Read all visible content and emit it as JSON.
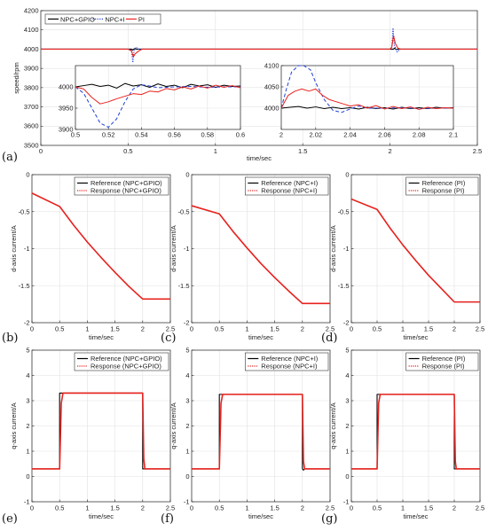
{
  "panel_labels": [
    "(a)",
    "(b)",
    "(c)",
    "(d)",
    "(e)",
    "(f)",
    "(g)"
  ],
  "colors": {
    "black": "#000000",
    "blue": "#1f3fd6",
    "red": "#e8231f"
  },
  "chart_data": [
    {
      "id": "a",
      "type": "line",
      "xlabel": "time/sec",
      "ylabel": "speed/rpm",
      "xlim": [
        0,
        2.5
      ],
      "ylim": [
        3500,
        4200
      ],
      "xticks": [
        0,
        0.5,
        1,
        1.5,
        2,
        2.5
      ],
      "yticks": [
        3500,
        3600,
        3700,
        3800,
        3900,
        4000,
        4100,
        4200
      ],
      "grid": true,
      "legend_position": "top-left",
      "series": [
        {
          "name": "NPC+GPIO",
          "color": "#000000",
          "dash": "solid",
          "x": [
            0,
            0.5,
            0.52,
            0.525,
            0.53,
            0.535,
            0.55,
            2.0,
            2.02,
            2.025,
            2.03,
            2.035,
            2.05,
            2.5
          ],
          "y": [
            4000,
            4000,
            4000,
            3995,
            3998,
            4002,
            4000,
            4000,
            4000,
            4005,
            4002,
            3998,
            4000,
            4000
          ]
        },
        {
          "name": "NPC+I",
          "color": "#1f3fd6",
          "dash": "dotted",
          "x": [
            0,
            0.51,
            0.52,
            0.527,
            0.535,
            0.545,
            0.56,
            2.0,
            2.01,
            2.017,
            2.025,
            2.04,
            2.06,
            2.5
          ],
          "y": [
            4000,
            4000,
            3990,
            3930,
            4000,
            4010,
            4000,
            4000,
            4010,
            4110,
            4020,
            3985,
            4000,
            4000
          ]
        },
        {
          "name": "PI",
          "color": "#e8231f",
          "dash": "solid",
          "x": [
            0,
            0.5,
            0.52,
            0.53,
            0.54,
            0.56,
            0.58,
            2.0,
            2.01,
            2.02,
            2.03,
            2.045,
            2.06,
            2.5
          ],
          "y": [
            4000,
            4000,
            3990,
            3960,
            3975,
            3990,
            4000,
            4000,
            4010,
            4070,
            4030,
            4005,
            4000,
            4000
          ]
        }
      ],
      "insets": [
        {
          "xlim": [
            0.5,
            0.6
          ],
          "ylim": [
            3900,
            4050
          ],
          "xticks": [
            0.5,
            0.52,
            0.54,
            0.56,
            0.58,
            0.6
          ],
          "yticks": [
            3900,
            3950,
            4000
          ],
          "series": [
            {
              "color": "#000000",
              "dash": "solid",
              "x": [
                0.5,
                0.505,
                0.51,
                0.515,
                0.52,
                0.525,
                0.53,
                0.535,
                0.54,
                0.545,
                0.55,
                0.555,
                0.56,
                0.565,
                0.57,
                0.575,
                0.58,
                0.585,
                0.59,
                0.595,
                0.6
              ],
              "y": [
                4000,
                4003,
                4006,
                4001,
                4004,
                3997,
                4008,
                4002,
                4005,
                3999,
                4007,
                4001,
                4004,
                3998,
                4006,
                4002,
                4005,
                3999,
                4004,
                4001,
                4002
              ]
            },
            {
              "color": "#1f3fd6",
              "dash": "dashed",
              "x": [
                0.5,
                0.505,
                0.51,
                0.515,
                0.52,
                0.525,
                0.53,
                0.535,
                0.54,
                0.545,
                0.55,
                0.56,
                0.57,
                0.58,
                0.59,
                0.6
              ],
              "y": [
                4000,
                3985,
                3950,
                3915,
                3905,
                3925,
                3965,
                3995,
                4005,
                4002,
                3998,
                4000,
                4001,
                3999,
                4000,
                4000
              ]
            },
            {
              "color": "#e8231f",
              "dash": "solid",
              "x": [
                0.5,
                0.505,
                0.51,
                0.515,
                0.52,
                0.525,
                0.53,
                0.535,
                0.54,
                0.545,
                0.55,
                0.555,
                0.56,
                0.565,
                0.57,
                0.575,
                0.58,
                0.585,
                0.59,
                0.595,
                0.6
              ],
              "y": [
                4000,
                3995,
                3975,
                3960,
                3965,
                3972,
                3978,
                3984,
                3982,
                3990,
                3988,
                3996,
                3993,
                4000,
                3995,
                4002,
                3997,
                4004,
                3999,
                4003,
                3998
              ]
            }
          ]
        },
        {
          "xlim": [
            2,
            2.1
          ],
          "ylim": [
            3950,
            4100
          ],
          "xticks": [
            2,
            2.02,
            2.04,
            2.06,
            2.08,
            2.1
          ],
          "yticks": [
            4000,
            4050,
            4100
          ],
          "series": [
            {
              "color": "#000000",
              "dash": "solid",
              "x": [
                2,
                2.005,
                2.01,
                2.015,
                2.02,
                2.025,
                2.03,
                2.035,
                2.04,
                2.045,
                2.05,
                2.055,
                2.06,
                2.065,
                2.07,
                2.075,
                2.08,
                2.085,
                2.09,
                2.095,
                2.1
              ],
              "y": [
                4000,
                4002,
                4004,
                4000,
                4003,
                3999,
                4002,
                3999,
                4001,
                3998,
                4002,
                3999,
                4001,
                3998,
                4002,
                3999,
                4001,
                3999,
                4002,
                4000,
                4001
              ]
            },
            {
              "color": "#1f3fd6",
              "dash": "dashed",
              "x": [
                2,
                2.003,
                2.006,
                2.01,
                2.013,
                2.017,
                2.02,
                2.025,
                2.03,
                2.035,
                2.04,
                2.045,
                2.05,
                2.06,
                2.07,
                2.08,
                2.09,
                2.1
              ],
              "y": [
                4000,
                4045,
                4085,
                4100,
                4100,
                4090,
                4060,
                4020,
                3995,
                3990,
                3998,
                4005,
                4000,
                4000,
                4001,
                3999,
                4000,
                4000
              ]
            },
            {
              "color": "#e8231f",
              "dash": "solid",
              "x": [
                2,
                2.004,
                2.008,
                2.012,
                2.016,
                2.02,
                2.024,
                2.028,
                2.032,
                2.036,
                2.04,
                2.045,
                2.05,
                2.055,
                2.06,
                2.065,
                2.07,
                2.075,
                2.08,
                2.085,
                2.09,
                2.095,
                2.1
              ],
              "y": [
                4000,
                4030,
                4040,
                4045,
                4040,
                4045,
                4030,
                4020,
                4015,
                4010,
                4005,
                4008,
                4000,
                4006,
                3998,
                4004,
                3999,
                4003,
                3997,
                4002,
                3999,
                4001,
                4000
              ]
            }
          ]
        }
      ]
    },
    {
      "id": "b",
      "type": "line",
      "xlabel": "time/sec",
      "ylabel": "d-axis current/A",
      "xlim": [
        0,
        2.5
      ],
      "ylim": [
        -2,
        0
      ],
      "xticks": [
        0,
        0.5,
        1,
        1.5,
        2,
        2.5
      ],
      "yticks": [
        -2,
        -1.5,
        -1,
        -0.5,
        0
      ],
      "grid": true,
      "legend_position": "top-right",
      "series": [
        {
          "name": "Reference (NPC+GPIO)",
          "color": "#000000",
          "dash": "solid",
          "x": [
            0,
            0.5,
            0.75,
            1.0,
            1.25,
            1.5,
            1.75,
            2.0,
            2.5
          ],
          "y": [
            -0.25,
            -0.43,
            -0.68,
            -0.91,
            -1.12,
            -1.32,
            -1.51,
            -1.68,
            -1.68
          ]
        },
        {
          "name": "Response (NPC+GPIO)",
          "color": "#e8231f",
          "dash": "solid",
          "x": [
            0,
            0.5,
            0.75,
            1.0,
            1.25,
            1.5,
            1.75,
            2.0,
            2.5
          ],
          "y": [
            -0.25,
            -0.43,
            -0.68,
            -0.91,
            -1.12,
            -1.32,
            -1.51,
            -1.68,
            -1.68
          ]
        }
      ]
    },
    {
      "id": "c",
      "type": "line",
      "xlabel": "time/sec",
      "ylabel": "d-axis current/A",
      "xlim": [
        0,
        2.5
      ],
      "ylim": [
        -2,
        0
      ],
      "xticks": [
        0,
        0.5,
        1,
        1.5,
        2,
        2.5
      ],
      "yticks": [
        -2,
        -1.5,
        -1,
        -0.5,
        0
      ],
      "grid": true,
      "legend_position": "top-right",
      "series": [
        {
          "name": "Reference (NPC+I)",
          "color": "#000000",
          "dash": "solid",
          "x": [
            0,
            0.5,
            0.75,
            1.0,
            1.25,
            1.5,
            1.75,
            2.0,
            2.5
          ],
          "y": [
            -0.42,
            -0.53,
            -0.77,
            -0.99,
            -1.2,
            -1.39,
            -1.57,
            -1.74,
            -1.74
          ]
        },
        {
          "name": "Response (NPC+I)",
          "color": "#e8231f",
          "dash": "solid",
          "x": [
            0,
            0.5,
            0.75,
            1.0,
            1.25,
            1.5,
            1.75,
            2.0,
            2.5
          ],
          "y": [
            -0.42,
            -0.53,
            -0.77,
            -0.99,
            -1.2,
            -1.39,
            -1.57,
            -1.74,
            -1.74
          ]
        }
      ]
    },
    {
      "id": "d",
      "type": "line",
      "xlabel": "time/sec",
      "ylabel": "d-axis current/A",
      "xlim": [
        0,
        2.5
      ],
      "ylim": [
        -2,
        0
      ],
      "xticks": [
        0,
        0.5,
        1,
        1.5,
        2,
        2.5
      ],
      "yticks": [
        -2,
        -1.5,
        -1,
        -0.5,
        0
      ],
      "grid": true,
      "legend_position": "top-right",
      "series": [
        {
          "name": "Reference (PI)",
          "color": "#000000",
          "dash": "solid",
          "x": [
            0,
            0.5,
            0.75,
            1.0,
            1.25,
            1.5,
            1.75,
            2.0,
            2.5
          ],
          "y": [
            -0.33,
            -0.47,
            -0.72,
            -0.95,
            -1.16,
            -1.36,
            -1.54,
            -1.72,
            -1.72
          ]
        },
        {
          "name": "Response (PI)",
          "color": "#e8231f",
          "dash": "solid",
          "x": [
            0,
            0.5,
            0.75,
            1.0,
            1.25,
            1.5,
            1.75,
            2.0,
            2.5
          ],
          "y": [
            -0.33,
            -0.47,
            -0.72,
            -0.95,
            -1.16,
            -1.36,
            -1.54,
            -1.72,
            -1.72
          ]
        }
      ]
    },
    {
      "id": "e",
      "type": "line",
      "xlabel": "time/sec",
      "ylabel": "q-axis current/A",
      "xlim": [
        0,
        2.5
      ],
      "ylim": [
        -1,
        5
      ],
      "xticks": [
        0,
        0.5,
        1,
        1.5,
        2,
        2.5
      ],
      "yticks": [
        -1,
        0,
        1,
        2,
        3,
        4,
        5
      ],
      "grid": true,
      "legend_position": "top-right",
      "series": [
        {
          "name": "Reference (NPC+GPIO)",
          "color": "#000000",
          "dash": "solid",
          "x": [
            0,
            0.5,
            0.5,
            2.0,
            2.0,
            2.5
          ],
          "y": [
            0.3,
            0.3,
            3.3,
            3.3,
            0.3,
            0.3
          ]
        },
        {
          "name": "Response (NPC+GPIO)",
          "color": "#e8231f",
          "dash": "solid",
          "x": [
            0,
            0.5,
            0.53,
            0.56,
            2.0,
            2.02,
            2.04,
            2.5
          ],
          "y": [
            0.3,
            0.3,
            2.9,
            3.3,
            3.3,
            0.7,
            0.3,
            0.3
          ]
        }
      ]
    },
    {
      "id": "f",
      "type": "line",
      "xlabel": "time/sec",
      "ylabel": "q-axis current/A",
      "xlim": [
        0,
        2.5
      ],
      "ylim": [
        -1,
        5
      ],
      "xticks": [
        0,
        0.5,
        1,
        1.5,
        2,
        2.5
      ],
      "yticks": [
        -1,
        0,
        1,
        2,
        3,
        4,
        5
      ],
      "grid": true,
      "legend_position": "top-right",
      "series": [
        {
          "name": "Reference (NPC+I)",
          "color": "#000000",
          "dash": "solid",
          "x": [
            0,
            0.5,
            0.5,
            2.0,
            2.0,
            2.02,
            2.04,
            2.5
          ],
          "y": [
            0.3,
            0.3,
            3.25,
            3.25,
            0.3,
            0.25,
            0.3,
            0.3
          ]
        },
        {
          "name": "Response (NPC+I)",
          "color": "#e8231f",
          "dash": "solid",
          "x": [
            0,
            0.5,
            0.53,
            0.56,
            2.0,
            2.02,
            2.04,
            2.5
          ],
          "y": [
            0.3,
            0.3,
            2.9,
            3.25,
            3.25,
            0.6,
            0.3,
            0.3
          ]
        }
      ]
    },
    {
      "id": "g",
      "type": "line",
      "xlabel": "time/sec",
      "ylabel": "q-axis current/A",
      "xlim": [
        0,
        2.5
      ],
      "ylim": [
        -1,
        5
      ],
      "xticks": [
        0,
        0.5,
        1,
        1.5,
        2,
        2.5
      ],
      "yticks": [
        -1,
        0,
        1,
        2,
        3,
        4,
        5
      ],
      "grid": true,
      "legend_position": "top-right",
      "series": [
        {
          "name": "Reference (PI)",
          "color": "#000000",
          "dash": "solid",
          "x": [
            0,
            0.5,
            0.5,
            2.0,
            2.0,
            2.5
          ],
          "y": [
            0.3,
            0.3,
            3.25,
            3.25,
            0.3,
            0.3
          ]
        },
        {
          "name": "Response (PI)",
          "color": "#e8231f",
          "dash": "solid",
          "x": [
            0,
            0.5,
            0.53,
            0.56,
            2.0,
            2.02,
            2.04,
            2.5
          ],
          "y": [
            0.3,
            0.3,
            2.9,
            3.25,
            3.25,
            0.6,
            0.3,
            0.3
          ]
        }
      ]
    }
  ]
}
